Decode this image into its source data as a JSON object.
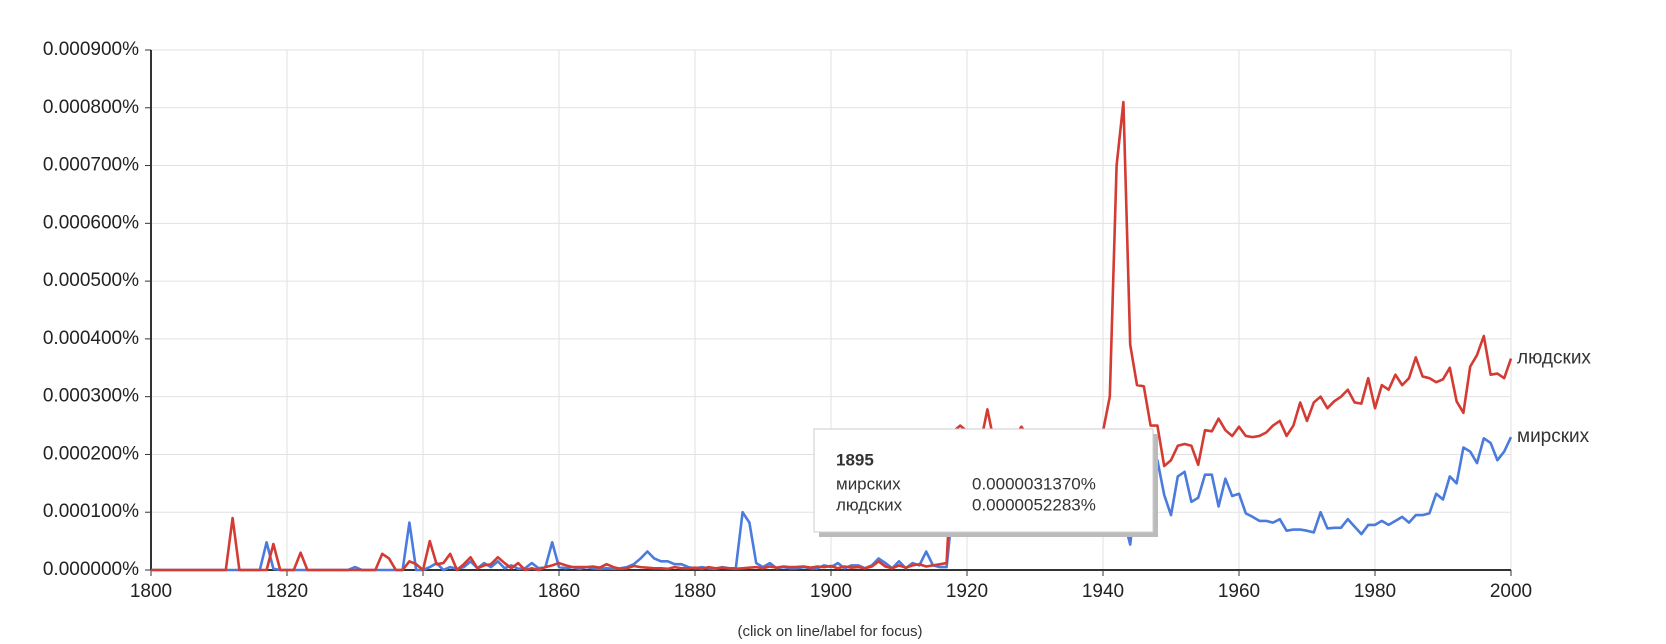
{
  "chart_data": {
    "type": "line",
    "x": [
      1800,
      1801,
      1802,
      1803,
      1804,
      1805,
      1806,
      1807,
      1808,
      1809,
      1810,
      1811,
      1812,
      1813,
      1814,
      1815,
      1816,
      1817,
      1818,
      1819,
      1820,
      1821,
      1822,
      1823,
      1824,
      1825,
      1826,
      1827,
      1828,
      1829,
      1830,
      1831,
      1832,
      1833,
      1834,
      1835,
      1836,
      1837,
      1838,
      1839,
      1840,
      1841,
      1842,
      1843,
      1844,
      1845,
      1846,
      1847,
      1848,
      1849,
      1850,
      1851,
      1852,
      1853,
      1854,
      1855,
      1856,
      1857,
      1858,
      1859,
      1860,
      1861,
      1862,
      1863,
      1864,
      1865,
      1866,
      1867,
      1868,
      1869,
      1870,
      1871,
      1872,
      1873,
      1874,
      1875,
      1876,
      1877,
      1878,
      1879,
      1880,
      1881,
      1882,
      1883,
      1884,
      1885,
      1886,
      1887,
      1888,
      1889,
      1890,
      1891,
      1892,
      1893,
      1894,
      1895,
      1896,
      1897,
      1898,
      1899,
      1900,
      1901,
      1902,
      1903,
      1904,
      1905,
      1906,
      1907,
      1908,
      1909,
      1910,
      1911,
      1912,
      1913,
      1914,
      1915,
      1916,
      1917,
      1918,
      1919,
      1920,
      1921,
      1922,
      1923,
      1924,
      1925,
      1926,
      1927,
      1928,
      1929,
      1930,
      1931,
      1932,
      1933,
      1934,
      1935,
      1936,
      1937,
      1938,
      1939,
      1940,
      1941,
      1942,
      1943,
      1944,
      1945,
      1946,
      1947,
      1948,
      1949,
      1950,
      1951,
      1952,
      1953,
      1954,
      1955,
      1956,
      1957,
      1958,
      1959,
      1960,
      1961,
      1962,
      1963,
      1964,
      1965,
      1966,
      1967,
      1968,
      1969,
      1970,
      1971,
      1972,
      1973,
      1974,
      1975,
      1976,
      1977,
      1978,
      1979,
      1980,
      1981,
      1982,
      1983,
      1984,
      1985,
      1986,
      1987,
      1988,
      1989,
      1990,
      1991,
      1992,
      1993,
      1994,
      1995,
      1996,
      1997,
      1998,
      1999,
      2000
    ],
    "series": [
      {
        "name": "мирских",
        "color": "#4a7bdd",
        "values": [
          0,
          0,
          0,
          0,
          0,
          0,
          0,
          0,
          0,
          0,
          0,
          0,
          0,
          0,
          0,
          0,
          0,
          4.8e-05,
          2e-06,
          0,
          0,
          0,
          0,
          0,
          0,
          0,
          0,
          0,
          0,
          0,
          5e-06,
          0,
          0,
          0,
          0,
          0,
          0,
          0,
          8.2e-05,
          0,
          0,
          5e-06,
          1.2e-05,
          0,
          5e-06,
          2e-06,
          5e-06,
          1.5e-05,
          3e-06,
          1.2e-05,
          5e-06,
          1.5e-05,
          3e-06,
          8e-06,
          2e-06,
          3e-06,
          1.2e-05,
          3e-06,
          5e-06,
          4.8e-05,
          5e-06,
          3e-06,
          5e-06,
          2e-06,
          5e-06,
          3e-06,
          2e-06,
          3e-06,
          2e-06,
          3e-06,
          5e-06,
          1e-05,
          2e-05,
          3.2e-05,
          2e-05,
          1.5e-05,
          1.5e-05,
          1e-05,
          1e-05,
          5e-06,
          3e-06,
          5e-06,
          3e-06,
          2e-06,
          5e-06,
          3e-06,
          3e-06,
          0.0001,
          8.2e-05,
          1.2e-05,
          5e-06,
          1.2e-05,
          3e-06,
          5e-06,
          3e-06,
          3.137e-06,
          5e-06,
          3e-06,
          3e-06,
          8e-06,
          5e-06,
          1.2e-05,
          3e-06,
          8e-06,
          8e-06,
          3e-06,
          8e-06,
          2e-05,
          1.2e-05,
          3e-06,
          1.5e-05,
          3e-06,
          1.2e-05,
          8e-06,
          3.2e-05,
          8e-06,
          5e-06,
          5e-06,
          0.00012,
          0.00013,
          0.00012,
          0.00011,
          0.00012,
          0.00013,
          0.00012,
          0.00011,
          0.00012,
          0.00013,
          0.00012,
          0.00011,
          0.00012,
          0.00013,
          0.00012,
          0.00011,
          0.00012,
          0.00013,
          0.00012,
          0.00011,
          0.00012,
          0.00013,
          0.00012,
          0.00011,
          0.0001,
          9e-05,
          4.4e-05,
          0.00015,
          0.00018,
          0.0002,
          0.00019,
          0.00013,
          9.5e-05,
          0.000162,
          0.00017,
          0.000118,
          0.000125,
          0.000165,
          0.000165,
          0.00011,
          0.000158,
          0.000128,
          0.000132,
          9.8e-05,
          9.2e-05,
          8.5e-05,
          8.5e-05,
          8.2e-05,
          8.8e-05,
          6.8e-05,
          7e-05,
          7e-05,
          6.8e-05,
          6.5e-05,
          0.0001,
          7.2e-05,
          7.3e-05,
          7.3e-05,
          8.8e-05,
          7.5e-05,
          6.2e-05,
          7.8e-05,
          7.8e-05,
          8.5e-05,
          7.8e-05,
          8.5e-05,
          9.2e-05,
          8.2e-05,
          9.5e-05,
          9.5e-05,
          9.8e-05,
          0.000132,
          0.000122,
          0.000162,
          0.00015,
          0.000212,
          0.000205,
          0.000185,
          0.000228,
          0.00022,
          0.00019,
          0.000205,
          0.00023
        ]
      },
      {
        "name": "людских",
        "color": "#d33b33",
        "values": [
          0,
          0,
          0,
          0,
          0,
          0,
          0,
          0,
          0,
          0,
          0,
          0,
          9e-05,
          0,
          0,
          0,
          0,
          0,
          4.5e-05,
          0,
          0,
          0,
          3e-05,
          0,
          0,
          0,
          0,
          0,
          0,
          0,
          0,
          0,
          0,
          0,
          2.8e-05,
          2e-05,
          0,
          0,
          1.5e-05,
          1e-05,
          0,
          5e-05,
          1e-05,
          1.2e-05,
          2.8e-05,
          0,
          1e-05,
          2.2e-05,
          3e-06,
          8e-06,
          1e-05,
          2.2e-05,
          1.2e-05,
          3e-06,
          1.2e-05,
          0,
          3e-06,
          0,
          5e-06,
          8e-06,
          1.2e-05,
          8e-06,
          5e-06,
          5e-06,
          5e-06,
          6e-06,
          4e-06,
          1e-05,
          5e-06,
          2e-06,
          3e-06,
          7e-06,
          5e-06,
          4e-06,
          3e-06,
          3e-06,
          2e-06,
          5e-06,
          3e-06,
          3e-06,
          4e-06,
          2e-06,
          5e-06,
          3e-06,
          4e-06,
          3e-06,
          2e-06,
          3e-06,
          4e-06,
          5e-06,
          3e-06,
          6e-06,
          4e-06,
          6e-06,
          5e-06,
          5.2283e-06,
          6e-06,
          4e-06,
          6e-06,
          5e-06,
          7e-06,
          3e-06,
          6e-06,
          4e-06,
          5e-06,
          3e-06,
          6e-06,
          1.5e-05,
          6e-06,
          3e-06,
          8e-06,
          4e-06,
          8e-06,
          1e-05,
          6e-06,
          8e-06,
          1e-05,
          1.2e-05,
          0.00024,
          0.00025,
          0.00024,
          0.00023,
          0.00022,
          0.000278,
          0.00022,
          0.00023,
          0.00022,
          0.00023,
          0.000248,
          0.00023,
          0.00024,
          0.00023,
          0.000235,
          0.00024,
          0.00023,
          0.000235,
          0.00024,
          0.00023,
          0.000235,
          0.00023,
          0.00024,
          0.0003,
          0.0007,
          0.00081,
          0.00039,
          0.00032,
          0.000318,
          0.00025,
          0.00025,
          0.00018,
          0.00019,
          0.000215,
          0.000218,
          0.000215,
          0.000182,
          0.000242,
          0.00024,
          0.000262,
          0.000242,
          0.000232,
          0.000248,
          0.000232,
          0.00023,
          0.000232,
          0.000238,
          0.00025,
          0.000258,
          0.000232,
          0.00025,
          0.00029,
          0.000258,
          0.00029,
          0.0003,
          0.00028,
          0.000292,
          0.0003,
          0.000312,
          0.00029,
          0.000288,
          0.000332,
          0.00028,
          0.00032,
          0.000312,
          0.000338,
          0.00032,
          0.000332,
          0.000368,
          0.000335,
          0.000332,
          0.000325,
          0.00033,
          0.00035,
          0.000292,
          0.000272,
          0.000352,
          0.000372,
          0.000405,
          0.000338,
          0.00034,
          0.000332,
          0.000366
        ]
      }
    ],
    "xlim": [
      1800,
      2000
    ],
    "xticks": [
      1800,
      1820,
      1840,
      1860,
      1880,
      1900,
      1920,
      1940,
      1960,
      1980,
      2000
    ],
    "ylim": [
      0,
      0.0009
    ],
    "yticks": [
      {
        "value": 0,
        "label": "0.000000%"
      },
      {
        "value": 0.0001,
        "label": "0.000100%"
      },
      {
        "value": 0.0002,
        "label": "0.000200%"
      },
      {
        "value": 0.0003,
        "label": "0.000300%"
      },
      {
        "value": 0.0004,
        "label": "0.000400%"
      },
      {
        "value": 0.0005,
        "label": "0.000500%"
      },
      {
        "value": 0.0006,
        "label": "0.000600%"
      },
      {
        "value": 0.0007,
        "label": "0.000700%"
      },
      {
        "value": 0.0008,
        "label": "0.000800%"
      },
      {
        "value": 0.0009,
        "label": "0.000900%"
      }
    ],
    "grid": true,
    "note": "(click on line/label for focus)",
    "tooltip": {
      "title": 1895,
      "rows": [
        {
          "value": 3.137e-06,
          "label": "0.0000031370%"
        },
        {
          "value": 5.2283e-06,
          "label": "0.0000052283%"
        }
      ]
    }
  }
}
